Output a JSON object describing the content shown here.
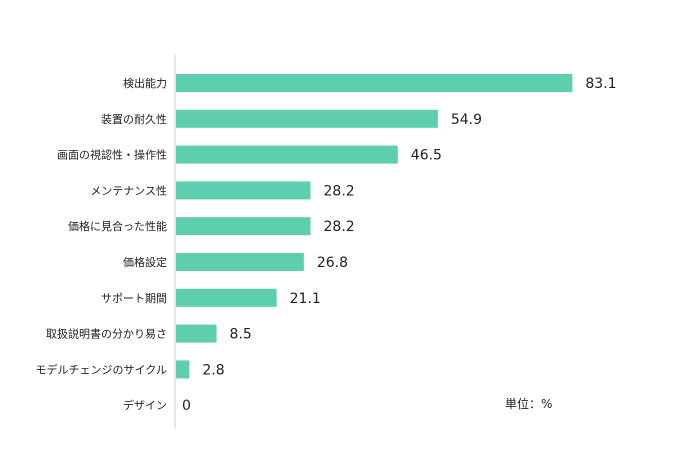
{
  "chart_data": {
    "type": "bar",
    "orientation": "horizontal",
    "categories": [
      "検出能力",
      "装置の耐久性",
      "画面の視認性・操作性",
      "メンテナンス性",
      "価格に見合った性能",
      "価格設定",
      "サポート期間",
      "取扱説明書の分かり易さ",
      "モデルチェンジのサイクル",
      "デザイン"
    ],
    "values": [
      83.1,
      54.9,
      46.5,
      28.2,
      28.2,
      26.8,
      21.1,
      8.5,
      2.8,
      0
    ],
    "value_labels": [
      "83.1",
      "54.9",
      "46.5",
      "28.2",
      "28.2",
      "26.8",
      "21.1",
      "8.5",
      "2.8",
      "0"
    ],
    "unit_label": "単位：%",
    "bar_color": "#5ecfae",
    "axis_color": "#cccccc",
    "grid": false,
    "legend": "none"
  }
}
